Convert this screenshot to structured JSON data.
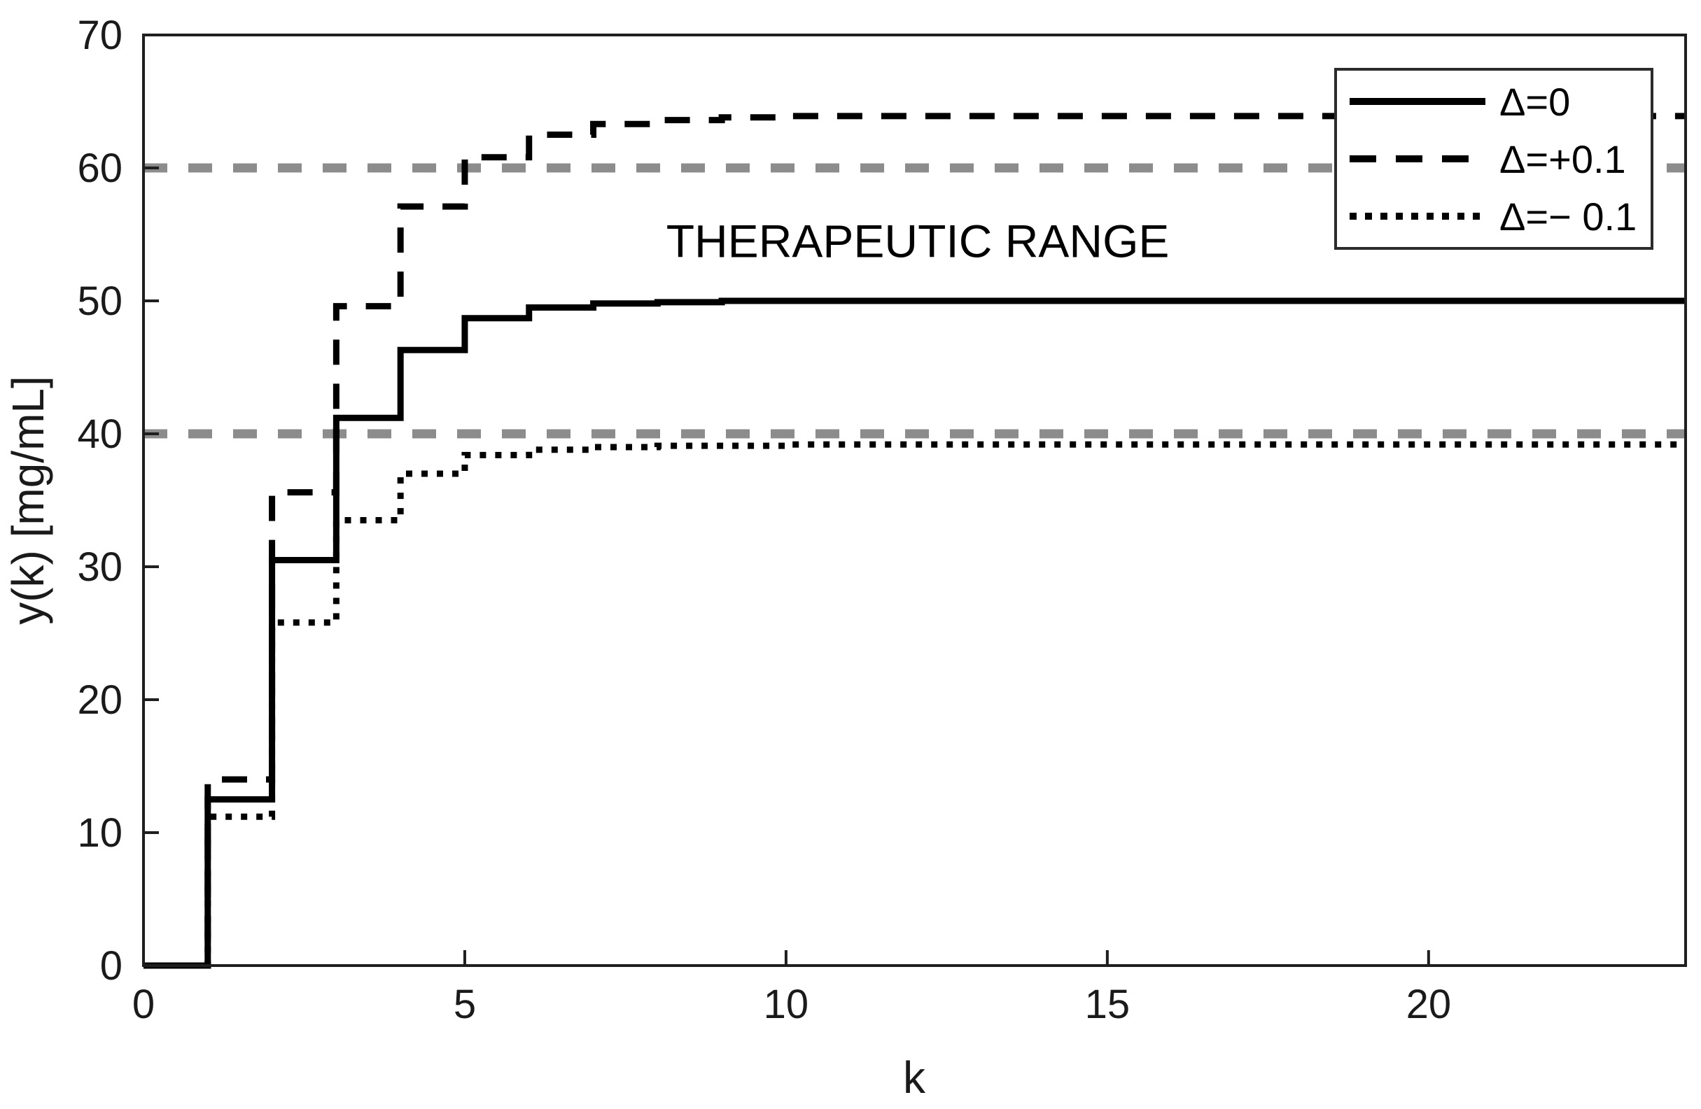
{
  "figure": {
    "background": "#ffffff",
    "axis_color": "#1f1f1f",
    "curve_color": "#000000",
    "reference_color": "#8c8c8c"
  },
  "chart_data": {
    "type": "line",
    "subtype": "stairs",
    "title": "",
    "xlabel": "k",
    "ylabel": "y(k) [mg/mL]",
    "xlim": [
      0,
      24
    ],
    "ylim": [
      0,
      70
    ],
    "xticks": [
      0,
      5,
      10,
      15,
      20
    ],
    "yticks": [
      0,
      10,
      20,
      30,
      40,
      50,
      60,
      70
    ],
    "grid": false,
    "legend_position": "top-right",
    "x": [
      0,
      1,
      2,
      3,
      4,
      5,
      6,
      7,
      8,
      9,
      10,
      11,
      12,
      13,
      14,
      15,
      16,
      17,
      18,
      19,
      20,
      21,
      22,
      23,
      24
    ],
    "series": [
      {
        "name": "Δ=0",
        "style": "solid",
        "color": "#000000",
        "values": [
          0,
          12.5,
          30.5,
          41.2,
          46.3,
          48.7,
          49.5,
          49.8,
          49.9,
          50,
          50,
          50,
          50,
          50,
          50,
          50,
          50,
          50,
          50,
          50,
          50,
          50,
          50,
          50,
          50
        ]
      },
      {
        "name": "Δ=+0.1",
        "style": "dashed",
        "color": "#000000",
        "values": [
          0,
          14,
          35.6,
          49.6,
          57.1,
          60.8,
          62.5,
          63.3,
          63.6,
          63.8,
          63.9,
          63.9,
          63.9,
          63.9,
          63.9,
          63.9,
          63.9,
          63.9,
          63.9,
          63.9,
          63.9,
          63.9,
          63.9,
          63.9,
          63.9
        ]
      },
      {
        "name": "Δ=− 0.1",
        "style": "dotted",
        "color": "#000000",
        "values": [
          0,
          11.2,
          25.8,
          33.5,
          37,
          38.4,
          38.8,
          39,
          39.1,
          39.1,
          39.2,
          39.2,
          39.2,
          39.2,
          39.2,
          39.2,
          39.2,
          39.2,
          39.2,
          39.2,
          39.2,
          39.2,
          39.2,
          39.2,
          39.2
        ]
      }
    ],
    "reference_lines": [
      {
        "label": "therapeutic-upper",
        "y": 60,
        "color": "#8c8c8c",
        "style": "dashed"
      },
      {
        "label": "therapeutic-lower",
        "y": 40,
        "color": "#8c8c8c",
        "style": "dashed"
      }
    ],
    "annotation": {
      "text": "THERAPEUTIC RANGE",
      "x": 12.05,
      "y": 53.3
    }
  }
}
